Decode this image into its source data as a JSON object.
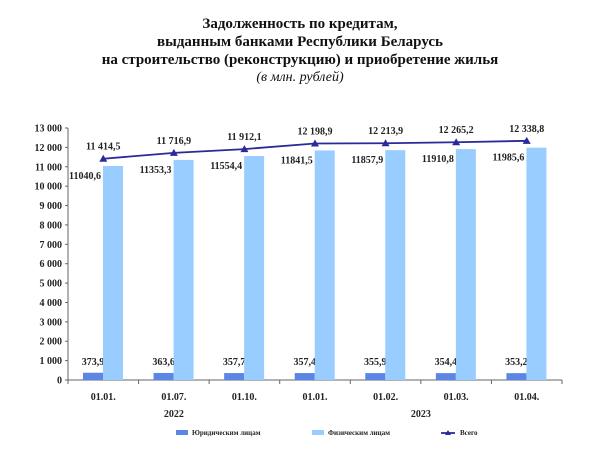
{
  "chart_data": {
    "type": "bar",
    "title_lines": [
      "Задолженность по кредитам,",
      "выданным банками Республики Беларусь",
      "на строительство (реконструкцию) и приобретение жилья"
    ],
    "subtitle": "(в млн. рублей)",
    "categories": [
      "01.01.",
      "01.07.",
      "01.10.",
      "01.01.",
      "01.02.",
      "01.03.",
      "01.04."
    ],
    "year_groups": [
      {
        "label": "2022",
        "span": 3
      },
      {
        "label": "2023",
        "span": 4
      }
    ],
    "ylim": [
      0,
      13000
    ],
    "yticks": [
      "0",
      "1 000",
      "2 000",
      "3 000",
      "4 000",
      "5 000",
      "6 000",
      "7 000",
      "8 000",
      "9 000",
      "10 000",
      "11 000",
      "12 000",
      "13 000"
    ],
    "series": [
      {
        "name": "Юридическим лицам",
        "type": "bar",
        "color": "#5b86e5",
        "values": [
          373.9,
          363.6,
          357.7,
          357.4,
          355.9,
          354.4,
          353.2
        ],
        "labels": [
          "373,9",
          "363,6",
          "357,7",
          "357,4",
          "355,9",
          "354,4",
          "353,2"
        ]
      },
      {
        "name": "Физическим лицам",
        "type": "bar",
        "color": "#99ccff",
        "values": [
          11040.6,
          11353.3,
          11554.4,
          11841.5,
          11857.9,
          11910.8,
          11985.6
        ],
        "labels": [
          "11040,6",
          "11353,3",
          "11554,4",
          "11841,5",
          "11857,9",
          "11910,8",
          "11985,6"
        ]
      },
      {
        "name": "Всего",
        "type": "line",
        "color": "#2a2a9a",
        "values": [
          11414.5,
          11716.9,
          11912.1,
          12198.9,
          12213.9,
          12265.2,
          12338.8
        ],
        "labels": [
          "11 414,5",
          "11 716,9",
          "11 912,1",
          "12 198,9",
          "12 213,9",
          "12 265,2",
          "12 338,8"
        ]
      }
    ]
  }
}
